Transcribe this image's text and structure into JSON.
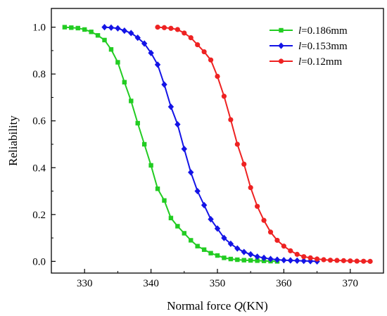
{
  "chart_data": {
    "type": "line",
    "xlabel_prefix": "Normal force ",
    "xlabel_var": "Q",
    "xlabel_suffix": "(KN)",
    "ylabel": "Reliability",
    "xlim": [
      325,
      375
    ],
    "ylim": [
      -0.05,
      1.08
    ],
    "xticks": [
      330,
      340,
      350,
      360,
      370
    ],
    "yticks": [
      0.0,
      0.2,
      0.4,
      0.6,
      0.8,
      1.0
    ],
    "ytick_labels": [
      "0.0",
      "0.2",
      "0.4",
      "0.6",
      "0.8",
      "1.0"
    ],
    "grid": false,
    "legend_position": "top-right",
    "series": [
      {
        "name_var": "l",
        "name_rest": "=0.186mm",
        "color": "#22cc22",
        "marker": "square",
        "x": [
          327,
          328,
          329,
          330,
          331,
          332,
          333,
          334,
          335,
          336,
          337,
          338,
          339,
          340,
          341,
          342,
          343,
          344,
          345,
          346,
          347,
          348,
          349,
          350,
          351,
          352,
          353,
          354,
          355,
          356,
          357,
          358,
          359
        ],
        "y": [
          1.0,
          0.998,
          0.996,
          0.99,
          0.98,
          0.965,
          0.945,
          0.905,
          0.85,
          0.765,
          0.685,
          0.59,
          0.5,
          0.41,
          0.31,
          0.26,
          0.185,
          0.15,
          0.12,
          0.09,
          0.065,
          0.05,
          0.035,
          0.025,
          0.015,
          0.01,
          0.007,
          0.005,
          0.004,
          0.003,
          0.002,
          0.001,
          0.0
        ]
      },
      {
        "name_var": "l",
        "name_rest": "=0.153mm",
        "color": "#1414e6",
        "marker": "diamond",
        "x": [
          333,
          334,
          335,
          336,
          337,
          338,
          339,
          340,
          341,
          342,
          343,
          344,
          345,
          346,
          347,
          348,
          349,
          350,
          351,
          352,
          353,
          354,
          355,
          356,
          357,
          358,
          359,
          360,
          361,
          362,
          363,
          364,
          365
        ],
        "y": [
          1.0,
          0.998,
          0.995,
          0.985,
          0.975,
          0.955,
          0.93,
          0.89,
          0.84,
          0.755,
          0.66,
          0.585,
          0.48,
          0.38,
          0.3,
          0.24,
          0.18,
          0.14,
          0.1,
          0.075,
          0.055,
          0.04,
          0.03,
          0.02,
          0.015,
          0.01,
          0.007,
          0.005,
          0.004,
          0.003,
          0.002,
          0.001,
          0.0
        ]
      },
      {
        "name_var": "l",
        "name_rest": "=0.12mm",
        "color": "#ee2222",
        "marker": "circle",
        "x": [
          341,
          342,
          343,
          344,
          345,
          346,
          347,
          348,
          349,
          350,
          351,
          352,
          353,
          354,
          355,
          356,
          357,
          358,
          359,
          360,
          361,
          362,
          363,
          364,
          365,
          366,
          367,
          368,
          369,
          370,
          371,
          372,
          373
        ],
        "y": [
          1.0,
          0.998,
          0.995,
          0.99,
          0.975,
          0.955,
          0.925,
          0.895,
          0.86,
          0.79,
          0.705,
          0.605,
          0.5,
          0.415,
          0.315,
          0.235,
          0.175,
          0.125,
          0.09,
          0.065,
          0.045,
          0.03,
          0.02,
          0.015,
          0.01,
          0.007,
          0.005,
          0.004,
          0.003,
          0.002,
          0.001,
          0.0005,
          0.0
        ]
      }
    ]
  }
}
